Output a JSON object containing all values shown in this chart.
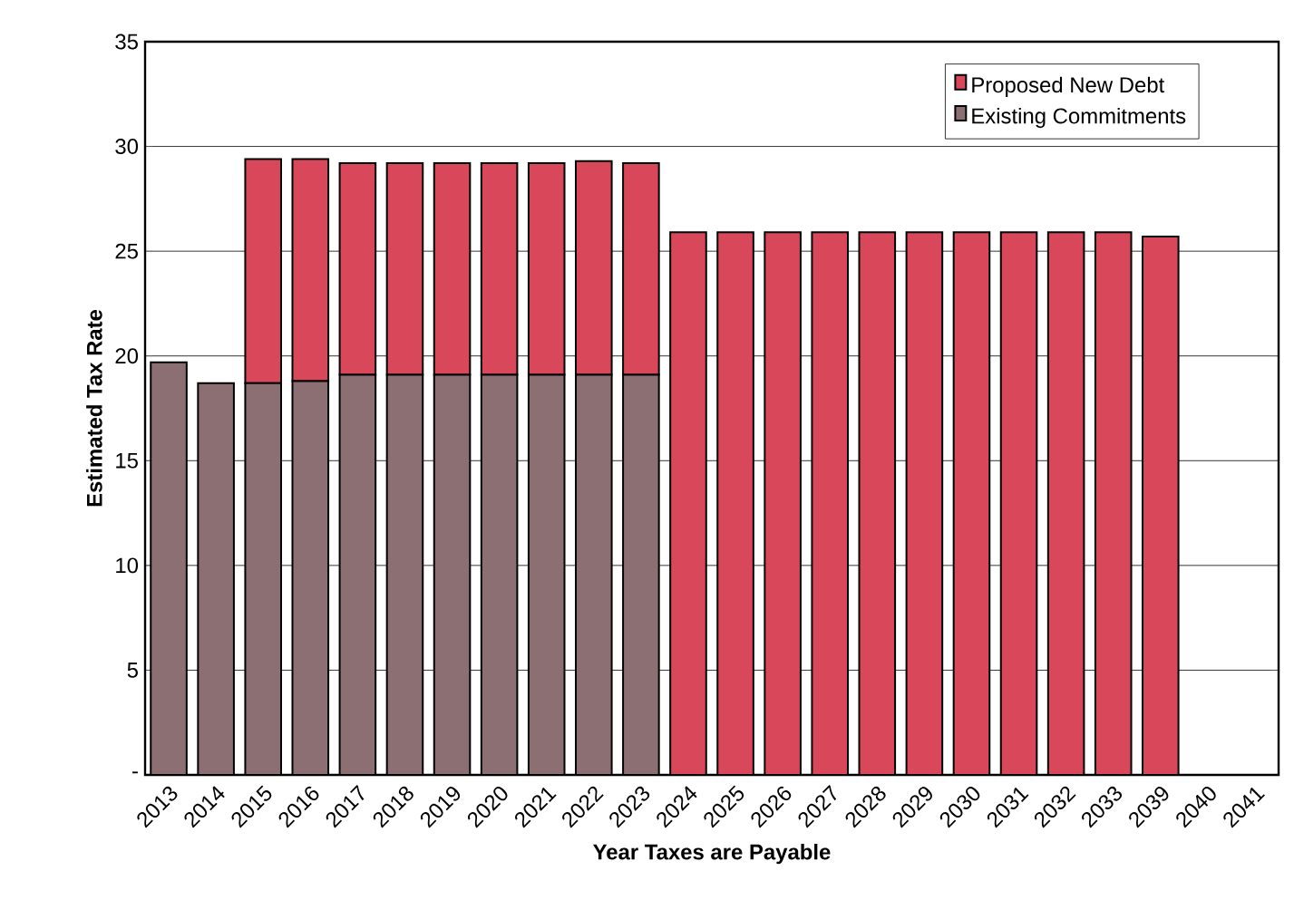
{
  "chart_data": {
    "type": "bar",
    "stacked": true,
    "xlabel": "Year Taxes are Payable",
    "ylabel": "Estimated Tax Rate",
    "categories": [
      "2013",
      "2014",
      "2015",
      "2016",
      "2017",
      "2018",
      "2019",
      "2020",
      "2021",
      "2022",
      "2023",
      "2024",
      "2025",
      "2026",
      "2027",
      "2028",
      "2029",
      "2030",
      "2031",
      "2032",
      "2033",
      "2039",
      "2040",
      "2041"
    ],
    "series": [
      {
        "name": "Existing Commitments",
        "color": "#8c6f72",
        "values": [
          19.7,
          18.7,
          18.7,
          18.8,
          19.1,
          19.1,
          19.1,
          19.1,
          19.1,
          19.1,
          19.1,
          0,
          0,
          0,
          0,
          0,
          0,
          0,
          0,
          0,
          0,
          0,
          null,
          null
        ]
      },
      {
        "name": "Proposed New Debt",
        "color": "#d9485a",
        "values": [
          0,
          0,
          10.7,
          10.6,
          10.1,
          10.1,
          10.1,
          10.1,
          10.1,
          10.2,
          10.1,
          25.9,
          25.9,
          25.9,
          25.9,
          25.9,
          25.9,
          25.9,
          25.9,
          25.9,
          25.9,
          25.7,
          null,
          null
        ]
      }
    ],
    "ylim": [
      0,
      35
    ],
    "yticks": [
      {
        "value": 0,
        "label": "-"
      },
      5,
      10,
      15,
      20,
      25,
      30,
      35
    ],
    "grid": "y",
    "legend": "top right"
  }
}
